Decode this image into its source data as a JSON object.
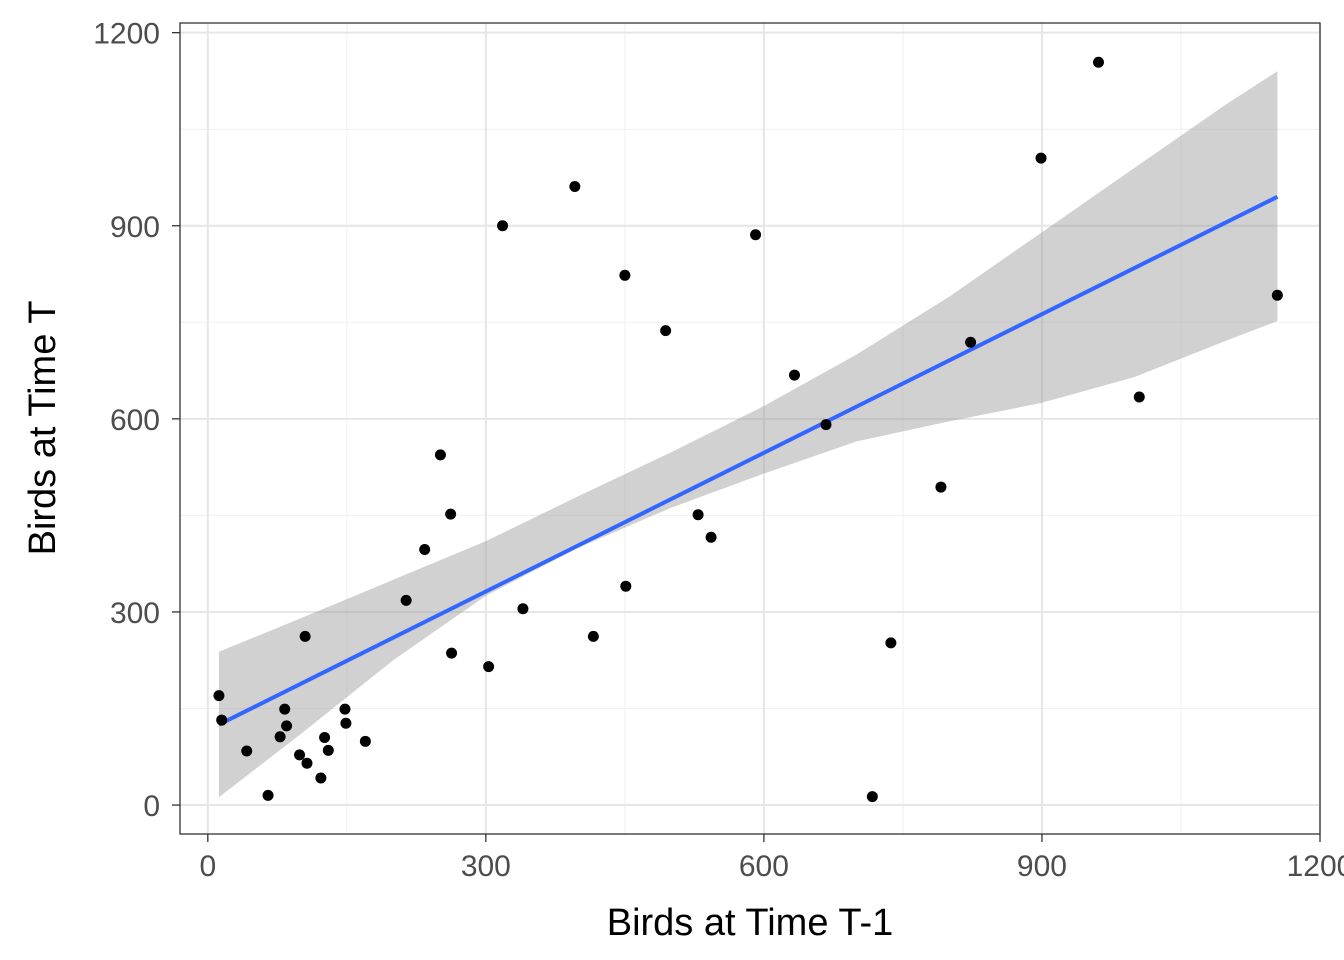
{
  "chart_data": {
    "type": "scatter",
    "title": "",
    "xlabel": "Birds at Time T-1",
    "ylabel": "Birds at Time T",
    "xlim": [
      -30,
      1200
    ],
    "ylim": [
      -45,
      1215
    ],
    "x_ticks": [
      0,
      300,
      600,
      900,
      1200
    ],
    "x_tick_labels": [
      "0",
      "300",
      "600",
      "900",
      "1200"
    ],
    "y_ticks": [
      0,
      300,
      600,
      900,
      1200
    ],
    "y_tick_labels": [
      "0",
      "300",
      "600",
      "900",
      "1200"
    ],
    "x_minor": [
      150,
      450,
      750,
      1050
    ],
    "y_minor": [
      150,
      450,
      750,
      1050
    ],
    "grid": true,
    "legend": "none",
    "colors": {
      "points": "#000000",
      "fit_line": "#3366FF",
      "ci_band": "#999999"
    },
    "points": [
      {
        "x": 12,
        "y": 170
      },
      {
        "x": 15,
        "y": 132
      },
      {
        "x": 42,
        "y": 84
      },
      {
        "x": 65,
        "y": 15
      },
      {
        "x": 78,
        "y": 106
      },
      {
        "x": 83,
        "y": 149
      },
      {
        "x": 85,
        "y": 123
      },
      {
        "x": 99,
        "y": 78
      },
      {
        "x": 105,
        "y": 262
      },
      {
        "x": 107,
        "y": 65
      },
      {
        "x": 122,
        "y": 42
      },
      {
        "x": 126,
        "y": 105
      },
      {
        "x": 130,
        "y": 85
      },
      {
        "x": 148,
        "y": 149
      },
      {
        "x": 149,
        "y": 127
      },
      {
        "x": 170,
        "y": 99
      },
      {
        "x": 214,
        "y": 318
      },
      {
        "x": 234,
        "y": 397
      },
      {
        "x": 251,
        "y": 544
      },
      {
        "x": 262,
        "y": 452
      },
      {
        "x": 263,
        "y": 236
      },
      {
        "x": 303,
        "y": 215
      },
      {
        "x": 318,
        "y": 900
      },
      {
        "x": 340,
        "y": 305
      },
      {
        "x": 396,
        "y": 961
      },
      {
        "x": 416,
        "y": 262
      },
      {
        "x": 450,
        "y": 823
      },
      {
        "x": 451,
        "y": 340
      },
      {
        "x": 494,
        "y": 737
      },
      {
        "x": 529,
        "y": 451
      },
      {
        "x": 543,
        "y": 416
      },
      {
        "x": 591,
        "y": 886
      },
      {
        "x": 633,
        "y": 668
      },
      {
        "x": 667,
        "y": 591
      },
      {
        "x": 717,
        "y": 13
      },
      {
        "x": 737,
        "y": 252
      },
      {
        "x": 791,
        "y": 494
      },
      {
        "x": 823,
        "y": 719
      },
      {
        "x": 899,
        "y": 1005
      },
      {
        "x": 961,
        "y": 1154
      },
      {
        "x": 1005,
        "y": 634
      },
      {
        "x": 1154,
        "y": 792
      }
    ],
    "fit_line": {
      "x": [
        12,
        1154
      ],
      "y": [
        125,
        945
      ]
    },
    "ci_band": {
      "x": [
        12,
        100,
        200,
        300,
        400,
        500,
        600,
        700,
        800,
        900,
        1000,
        1100,
        1154
      ],
      "lower": [
        12,
        110,
        225,
        325,
        400,
        462,
        515,
        565,
        596,
        625,
        665,
        722,
        752
      ],
      "upper": [
        238,
        290,
        350,
        410,
        480,
        548,
        620,
        700,
        790,
        890,
        990,
        1090,
        1140
      ]
    }
  }
}
